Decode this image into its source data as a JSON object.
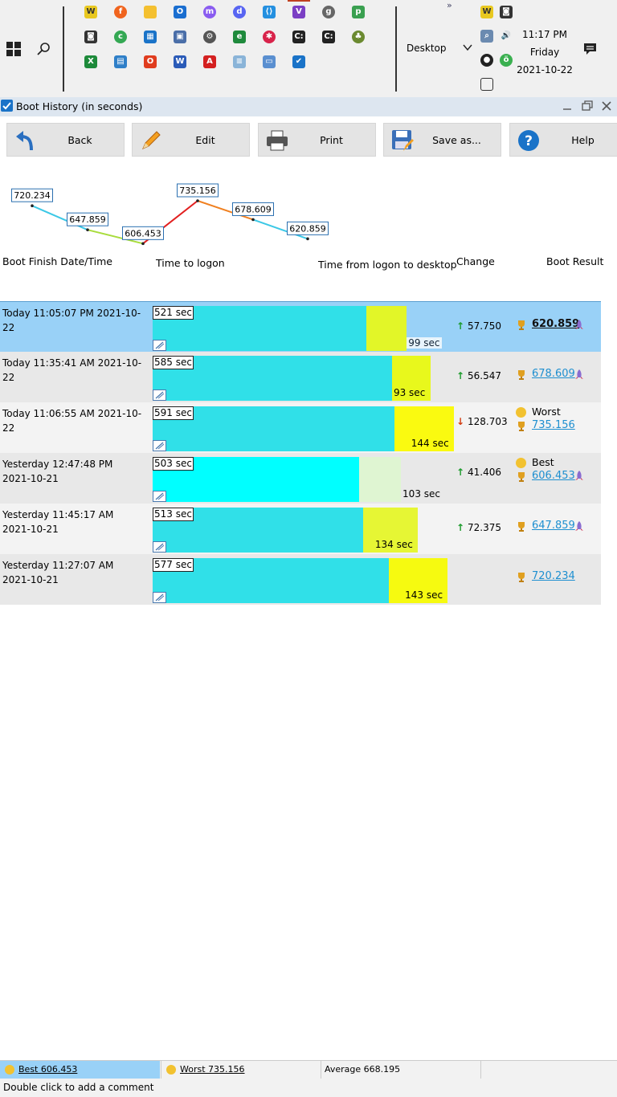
{
  "taskbar": {
    "desktop_label": "Desktop",
    "overflow_label": "»",
    "clock": {
      "time": "11:17 PM",
      "day": "Friday",
      "date": "2021-10-22"
    }
  },
  "window": {
    "title": "Boot History (in seconds)"
  },
  "toolbar": {
    "back_label": "Back",
    "edit_label": "Edit",
    "print_label": "Print",
    "save_label": "Save as...",
    "help_label": "Help"
  },
  "columns": {
    "date": "Boot Finish Date/Time",
    "logon": "Time to logon",
    "desktop": "Time from logon to desktop",
    "change": "Change",
    "result": "Boot Result"
  },
  "chart_data": {
    "type": "line",
    "x": [
      "Yesterday 11:27:07 AM",
      "Yesterday 11:45:17 AM",
      "Yesterday 12:47:48 PM",
      "Today 11:06:55 AM",
      "Today 11:35:41 AM",
      "Today 11:05:07 PM"
    ],
    "values": [
      720.234,
      647.859,
      606.453,
      735.156,
      678.609,
      620.859
    ],
    "labels": [
      "720.234",
      "647.859",
      "606.453",
      "735.156",
      "678.609",
      "620.859"
    ],
    "segment_colors": [
      "#3cc8e6",
      "#a8dc3c",
      "#e22020",
      "#f08020",
      "#3cc8e6"
    ]
  },
  "rows": [
    {
      "date1": "Today  11:05:07 PM 2021-10-22",
      "date2": "",
      "logon": 521,
      "desktop": 99,
      "logon_label": "521 sec",
      "desktop_label": "99 sec",
      "change_dir": "up",
      "change": "57.750",
      "tag": "",
      "result": "620.859",
      "rocket": true,
      "selected": true,
      "desk_color": "#e2f628"
    },
    {
      "date1": "Today  11:35:41 AM 2021-10-22",
      "date2": "",
      "logon": 585,
      "desktop": 93,
      "logon_label": "585 sec",
      "desktop_label": "93 sec",
      "change_dir": "up",
      "change": "56.547",
      "tag": "",
      "result": "678.609",
      "rocket": true,
      "selected": false,
      "desk_color": "#e8f81c"
    },
    {
      "date1": "Today  11:06:55 AM 2021-10-22",
      "date2": "",
      "logon": 591,
      "desktop": 144,
      "logon_label": "591 sec",
      "desktop_label": "144 sec",
      "change_dir": "down",
      "change": "128.703",
      "tag": "Worst",
      "result": "735.156",
      "rocket": false,
      "selected": false,
      "desk_color": "#fafa10"
    },
    {
      "date1": "Yesterday  12:47:48 PM",
      "date2": "2021-10-21",
      "logon": 503,
      "desktop": 103,
      "logon_label": "503 sec",
      "desktop_label": "103 sec",
      "change_dir": "up",
      "change": "41.406",
      "tag": "Best",
      "result": "606.453",
      "rocket": true,
      "selected": false,
      "desk_color": "#dff5d2"
    },
    {
      "date1": "Yesterday  11:45:17 AM",
      "date2": "2021-10-21",
      "logon": 513,
      "desktop": 134,
      "logon_label": "513 sec",
      "desktop_label": "134 sec",
      "change_dir": "up",
      "change": "72.375",
      "tag": "",
      "result": "647.859",
      "rocket": true,
      "selected": false,
      "desk_color": "#e6f634"
    },
    {
      "date1": "Yesterday  11:27:07 AM",
      "date2": "2021-10-21",
      "logon": 577,
      "desktop": 143,
      "logon_label": "577 sec",
      "desktop_label": "143 sec",
      "change_dir": "",
      "change": "",
      "tag": "",
      "result": "720.234",
      "rocket": false,
      "selected": false,
      "desk_color": "#f6fa10"
    }
  ],
  "status": {
    "best": "Best 606.453",
    "worst": "Worst 735.156",
    "average": "Average 668.195",
    "comment_hint": "Double click to add a comment"
  },
  "colors": {
    "accent": "#1a73c8",
    "logon_bar": "#30e0e8",
    "selection": "#99d1f7",
    "link": "#1e8fd0"
  }
}
